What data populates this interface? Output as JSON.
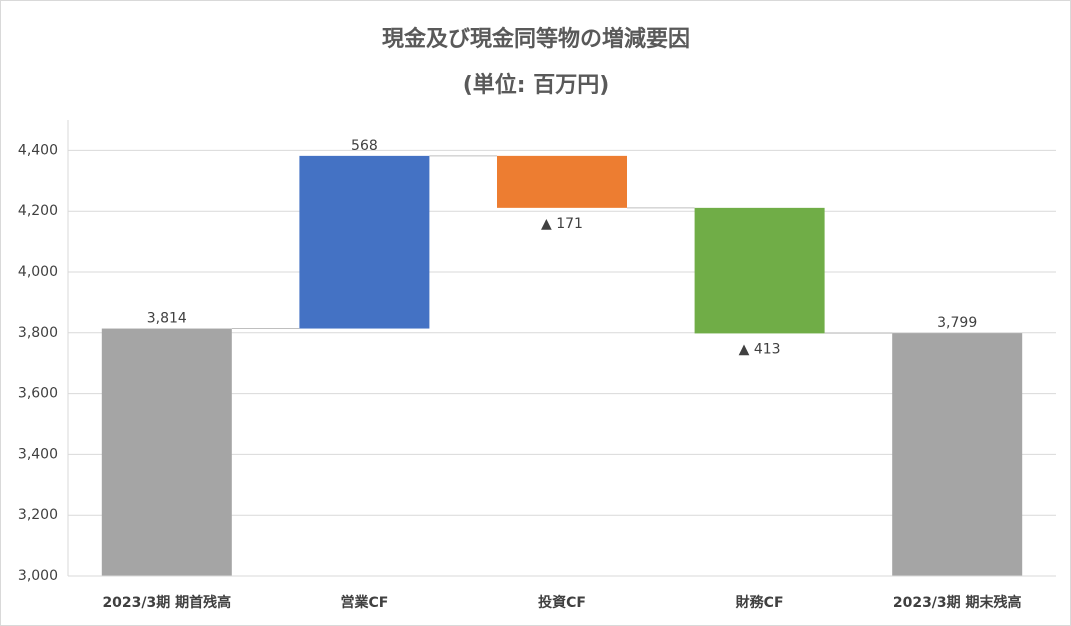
{
  "chart_data": {
    "type": "waterfall",
    "title": "現金及び現金同等物の増減要因",
    "subtitle": "(単位: 百万円)",
    "categories": [
      "2023/3期 期首残高",
      "営業CF",
      "投資CF",
      "財務CF",
      "2023/3期 期末残高"
    ],
    "values": [
      3814,
      568,
      -171,
      -413,
      3799
    ],
    "value_labels": [
      "3,814",
      "568",
      "▲ 171",
      "▲ 413",
      "3,799"
    ],
    "colors": [
      "#a5a5a5",
      "#4472c4",
      "#ed7d31",
      "#70ad47",
      "#a5a5a5"
    ],
    "ylim": [
      3000,
      4500
    ],
    "yticks": [
      {
        "value": 3000,
        "label": "3,000"
      },
      {
        "value": 3200,
        "label": "3,200"
      },
      {
        "value": 3400,
        "label": "3,400"
      },
      {
        "value": 3600,
        "label": "3,600"
      },
      {
        "value": 3800,
        "label": "3,800"
      },
      {
        "value": 4000,
        "label": "4,000"
      },
      {
        "value": 4200,
        "label": "4,200"
      },
      {
        "value": 4400,
        "label": "4,400"
      }
    ],
    "grid": true
  }
}
